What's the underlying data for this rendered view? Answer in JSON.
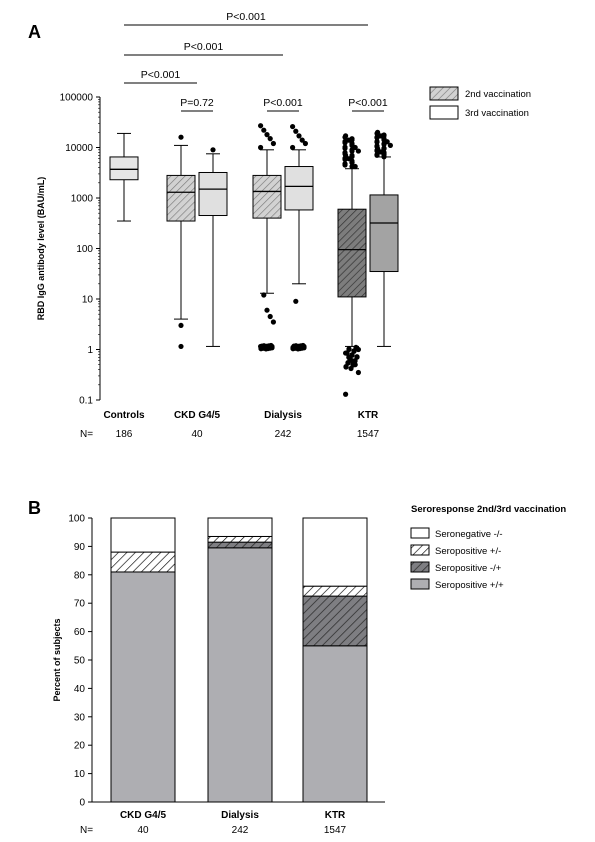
{
  "chart_data": [
    {
      "panel": "A",
      "type": "box",
      "ylabel": "RBD IgG antibody level (BAU/mL)",
      "yscale": "log",
      "ylim": [
        0.1,
        100000
      ],
      "yticks": [
        "0.1",
        "1",
        "10",
        "100",
        "1000",
        "10000",
        "100000"
      ],
      "n_label": "N=",
      "groups": [
        {
          "name": "Controls",
          "n": "186"
        },
        {
          "name": "CKD G4/5",
          "n": "40"
        },
        {
          "name": "Dialysis",
          "n": "242"
        },
        {
          "name": "KTR",
          "n": "1547"
        }
      ],
      "legend": [
        {
          "label": "2nd vaccination",
          "pattern": "hatched"
        },
        {
          "label": "3rd vaccination",
          "pattern": "plain"
        }
      ],
      "boxes": [
        {
          "group": "Controls",
          "series": "",
          "whisker_low": 350,
          "q1": 2300,
          "median": 3700,
          "q3": 6500,
          "whisker_high": 19000,
          "outliers": []
        },
        {
          "group": "CKD G4/5",
          "series": "2nd vaccination",
          "whisker_low": 4,
          "q1": 350,
          "median": 1300,
          "q3": 2800,
          "whisker_high": 11000,
          "outliers": [
            16000,
            3,
            1.15
          ]
        },
        {
          "group": "CKD G4/5",
          "series": "3rd vaccination",
          "whisker_low": 1.15,
          "q1": 450,
          "median": 1500,
          "q3": 3200,
          "whisker_high": 7500,
          "outliers": [
            9000
          ]
        },
        {
          "group": "Dialysis",
          "series": "2nd vaccination",
          "whisker_low": 13,
          "q1": 400,
          "median": 1350,
          "q3": 2800,
          "whisker_high": 9000,
          "outliers": [
            27000,
            22000,
            18000,
            15000,
            12000,
            10000,
            12,
            6,
            4.5,
            3.5,
            1.15
          ]
        },
        {
          "group": "Dialysis",
          "series": "3rd vaccination",
          "whisker_low": 20,
          "q1": 580,
          "median": 1700,
          "q3": 4200,
          "whisker_high": 9000,
          "outliers": [
            26000,
            21000,
            17000,
            14000,
            12000,
            10000,
            9,
            1.15
          ]
        },
        {
          "group": "KTR",
          "series": "2nd vaccination",
          "whisker_low": 1.15,
          "q1": 11,
          "median": 95,
          "q3": 600,
          "whisker_high": 3800,
          "outliers": [
            17000,
            14000,
            12000,
            10000,
            8500,
            7000,
            6000,
            5000,
            4200,
            1,
            0.85,
            0.7,
            0.6,
            0.5,
            0.35,
            0.13
          ]
        },
        {
          "group": "KTR",
          "series": "3rd vaccination",
          "whisker_low": 1.15,
          "q1": 35,
          "median": 320,
          "q3": 1150,
          "whisker_high": 6500,
          "outliers": [
            20000,
            17000,
            15000,
            13000,
            11000,
            9500,
            8200,
            7200
          ]
        }
      ],
      "comparisons": [
        {
          "label": "P<0.001",
          "from": "Controls",
          "to": "KTR"
        },
        {
          "label": "P<0.001",
          "from": "Controls",
          "to": "Dialysis"
        },
        {
          "label": "P<0.001",
          "from": "Controls",
          "to": "CKD G4/5"
        },
        {
          "label": "P=0.72",
          "within": "CKD G4/5"
        },
        {
          "label": "P<0.001",
          "within": "Dialysis"
        },
        {
          "label": "P<0.001",
          "within": "KTR"
        }
      ]
    },
    {
      "panel": "B",
      "type": "stacked-bar",
      "ylabel": "Percent of subjects",
      "ylim": [
        0,
        100
      ],
      "yticks": [
        "0",
        "10",
        "20",
        "30",
        "40",
        "50",
        "60",
        "70",
        "80",
        "90",
        "100"
      ],
      "legend_title": "Seroresponse 2nd/3rd vaccination",
      "n_label": "N=",
      "categories": [
        "CKD G4/5",
        "Dialysis",
        "KTR"
      ],
      "n": [
        "40",
        "242",
        "1547"
      ],
      "series": [
        {
          "name": "Seropositive +/+",
          "pattern": "gray",
          "values": [
            81,
            89.5,
            55
          ]
        },
        {
          "name": "Seropositive -/+",
          "pattern": "dark-hatched",
          "values": [
            0,
            2,
            17.5
          ]
        },
        {
          "name": "Seropositive +/-",
          "pattern": "hatched",
          "values": [
            7,
            2,
            3.5
          ]
        },
        {
          "name": "Seronegative -/-",
          "pattern": "white",
          "values": [
            12,
            6.5,
            24
          ]
        }
      ],
      "legend_order": [
        "Seronegative -/-",
        "Seropositive +/-",
        "Seropositive -/+",
        "Seropositive +/+"
      ]
    }
  ],
  "colors": {
    "box_plain": "#e6e6e6",
    "box_hatched_light": "#cfcfcf",
    "box_hatched_dark": "#6e6e6e",
    "bar_gray": "#aeaeb2",
    "axis": "#000000"
  }
}
